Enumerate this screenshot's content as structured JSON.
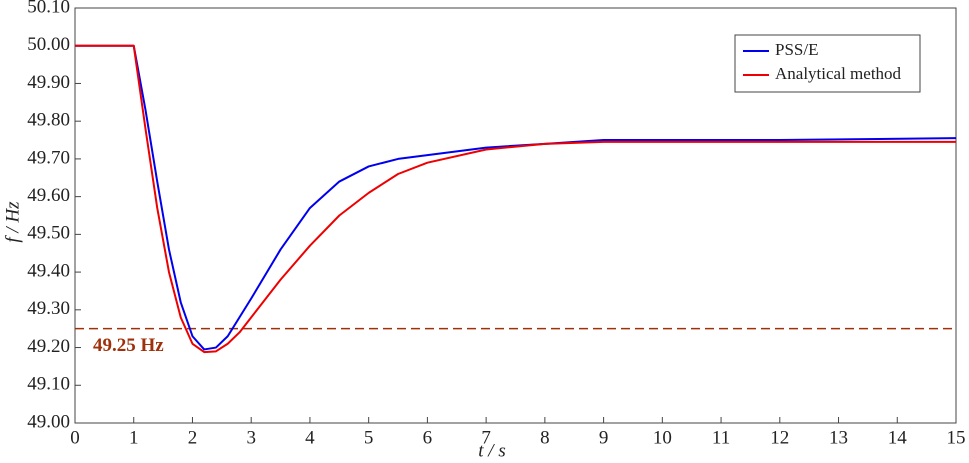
{
  "chart_data": {
    "type": "line",
    "x_label": "t / s",
    "y_label": "f / Hz",
    "x": [
      0,
      1,
      1.2,
      1.4,
      1.6,
      1.8,
      2.0,
      2.2,
      2.4,
      2.6,
      2.8,
      3,
      3.5,
      4,
      4.5,
      5,
      5.5,
      6,
      7,
      8,
      9,
      10,
      12,
      15
    ],
    "series": [
      {
        "name": "PSS/E",
        "color": "#0000ee",
        "values": [
          50.0,
          50.0,
          49.83,
          49.64,
          49.46,
          49.32,
          49.23,
          49.195,
          49.2,
          49.23,
          49.28,
          49.33,
          49.46,
          49.57,
          49.64,
          49.68,
          49.7,
          49.71,
          49.73,
          49.74,
          49.75,
          49.75,
          49.75,
          49.755
        ]
      },
      {
        "name": "Analytical method",
        "color": "#ee0000",
        "values": [
          50.0,
          50.0,
          49.78,
          49.57,
          49.4,
          49.28,
          49.21,
          49.188,
          49.19,
          49.21,
          49.24,
          49.28,
          49.38,
          49.47,
          49.55,
          49.61,
          49.66,
          49.69,
          49.725,
          49.74,
          49.745,
          49.745,
          49.745,
          49.745
        ]
      }
    ],
    "threshold": {
      "value": 49.25,
      "label": "49.25 Hz",
      "color": "#a0300a"
    },
    "xlim": [
      0,
      15
    ],
    "ylim": [
      49.0,
      50.1
    ],
    "xticks": [
      0,
      1,
      2,
      3,
      4,
      5,
      6,
      7,
      8,
      9,
      10,
      11,
      12,
      13,
      14,
      15
    ],
    "yticks": [
      {
        "value": 49.0,
        "label": "49.00"
      },
      {
        "value": 49.1,
        "label": "49.10"
      },
      {
        "value": 49.2,
        "label": "49.20"
      },
      {
        "value": 49.3,
        "label": "49.30"
      },
      {
        "value": 49.4,
        "label": "49.40"
      },
      {
        "value": 49.5,
        "label": "49.50"
      },
      {
        "value": 49.6,
        "label": "49.60"
      },
      {
        "value": 49.7,
        "label": "49.70"
      },
      {
        "value": 49.8,
        "label": "49.80"
      },
      {
        "value": 49.9,
        "label": "49.90"
      },
      {
        "value": 50.0,
        "label": "50.00"
      },
      {
        "value": 50.1,
        "label": "50.10"
      }
    ],
    "legend": "upper right",
    "grid": false
  }
}
